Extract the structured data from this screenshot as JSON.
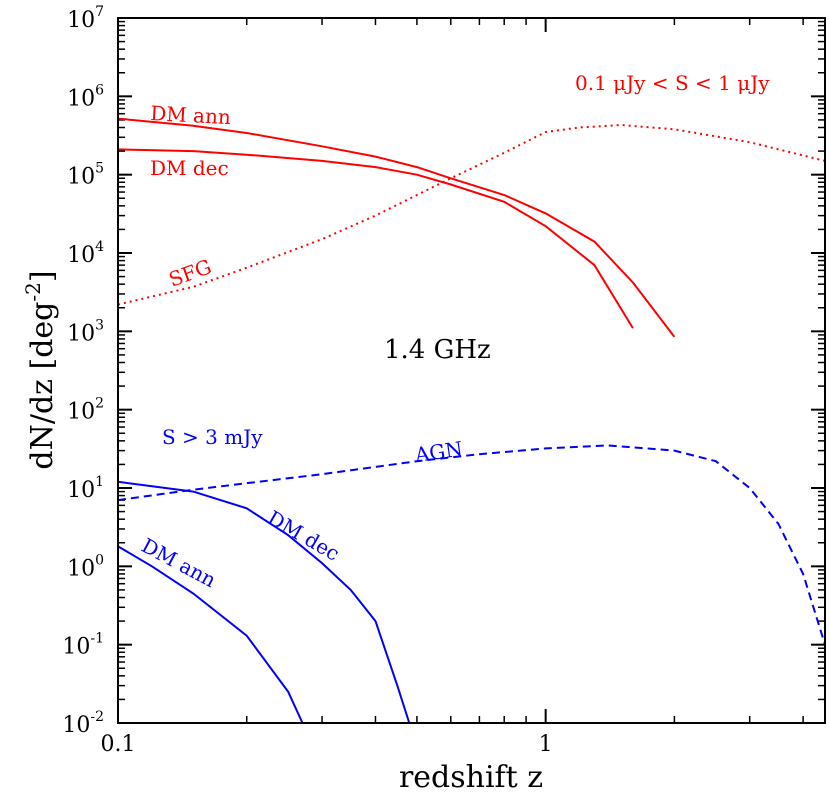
{
  "chart_data": {
    "type": "line",
    "xscale": "log",
    "yscale": "log",
    "xlim": [
      0.1,
      4.5
    ],
    "ylim": [
      0.01,
      10000000
    ],
    "xlabel": "redshift z",
    "ylabel_main": "dN/dz [deg",
    "ylabel_exp": "-2",
    "ylabel_close": "]",
    "x_major_ticks": [
      {
        "value": 0.1,
        "label": "0.1"
      },
      {
        "value": 1,
        "label": "1"
      }
    ],
    "y_major_ticks": [
      {
        "value": 0.01,
        "base": "10",
        "exp": "-2"
      },
      {
        "value": 0.1,
        "base": "10",
        "exp": "-1"
      },
      {
        "value": 1,
        "base": "10",
        "exp": "0"
      },
      {
        "value": 10,
        "base": "10",
        "exp": "1"
      },
      {
        "value": 100,
        "base": "10",
        "exp": "2"
      },
      {
        "value": 1000,
        "base": "10",
        "exp": "3"
      },
      {
        "value": 10000,
        "base": "10",
        "exp": "4"
      },
      {
        "value": 100000,
        "base": "10",
        "exp": "5"
      },
      {
        "value": 1000000,
        "base": "10",
        "exp": "6"
      },
      {
        "value": 10000000,
        "base": "10",
        "exp": "7"
      }
    ],
    "colors": {
      "red": "#ff0000",
      "blue": "#0000ff"
    },
    "series": [
      {
        "name": "DM ann (0.1 µJy < S < 1 µJy)",
        "color": "#ff0000",
        "dash": "solid",
        "x": [
          0.1,
          0.15,
          0.2,
          0.3,
          0.4,
          0.5,
          0.6,
          0.8,
          1.0,
          1.3,
          1.6,
          2.0
        ],
        "y": [
          520000,
          420000,
          340000,
          230000,
          170000,
          125000,
          90000,
          55000,
          32000,
          14000,
          4200,
          850
        ]
      },
      {
        "name": "DM dec (0.1 µJy < S < 1 µJy)",
        "color": "#ff0000",
        "dash": "solid",
        "x": [
          0.1,
          0.15,
          0.2,
          0.3,
          0.4,
          0.5,
          0.6,
          0.8,
          1.0,
          1.3,
          1.6
        ],
        "y": [
          210000,
          200000,
          180000,
          150000,
          125000,
          100000,
          75000,
          45000,
          22000,
          7000,
          1100
        ]
      },
      {
        "name": "SFG",
        "color": "#ff0000",
        "dash": "dotted",
        "x": [
          0.1,
          0.15,
          0.2,
          0.3,
          0.4,
          0.5,
          0.6,
          0.8,
          1.0,
          1.2,
          1.5,
          2.0,
          3.0,
          4.5
        ],
        "y": [
          2200,
          3700,
          6500,
          15000,
          30000,
          55000,
          90000,
          190000,
          350000,
          400000,
          430000,
          380000,
          260000,
          150000
        ]
      },
      {
        "name": "AGN",
        "color": "#0000ff",
        "dash": "dashed",
        "x": [
          0.1,
          0.15,
          0.2,
          0.3,
          0.5,
          0.7,
          1.0,
          1.4,
          2.0,
          2.5,
          3.0,
          3.5,
          4.0,
          4.5
        ],
        "y": [
          7,
          9.5,
          11.5,
          15,
          22,
          27,
          32,
          35,
          30,
          22,
          10,
          3.5,
          0.8,
          0.1
        ]
      },
      {
        "name": "DM dec (S > 3 mJy)",
        "color": "#0000ff",
        "dash": "solid",
        "x": [
          0.1,
          0.15,
          0.2,
          0.25,
          0.3,
          0.35,
          0.4,
          0.45,
          0.48
        ],
        "y": [
          12,
          9,
          5.5,
          2.5,
          1.1,
          0.5,
          0.2,
          0.03,
          0.01
        ]
      },
      {
        "name": "DM ann (S > 3 mJy)",
        "color": "#0000ff",
        "dash": "solid",
        "x": [
          0.1,
          0.12,
          0.15,
          0.2,
          0.25,
          0.27
        ],
        "y": [
          1.8,
          1.0,
          0.45,
          0.13,
          0.025,
          0.01
        ]
      }
    ],
    "annotations": {
      "red_flux_range": "0.1 μJy < S < 1 μJy",
      "red_dm_ann": "DM ann",
      "red_dm_dec": "DM dec",
      "sfg": "SFG",
      "frequency": "1.4 GHz",
      "blue_flux_cut": "S > 3 mJy",
      "agn": "AGN",
      "blue_dm_dec": "DM dec",
      "blue_dm_ann": "DM ann"
    }
  }
}
